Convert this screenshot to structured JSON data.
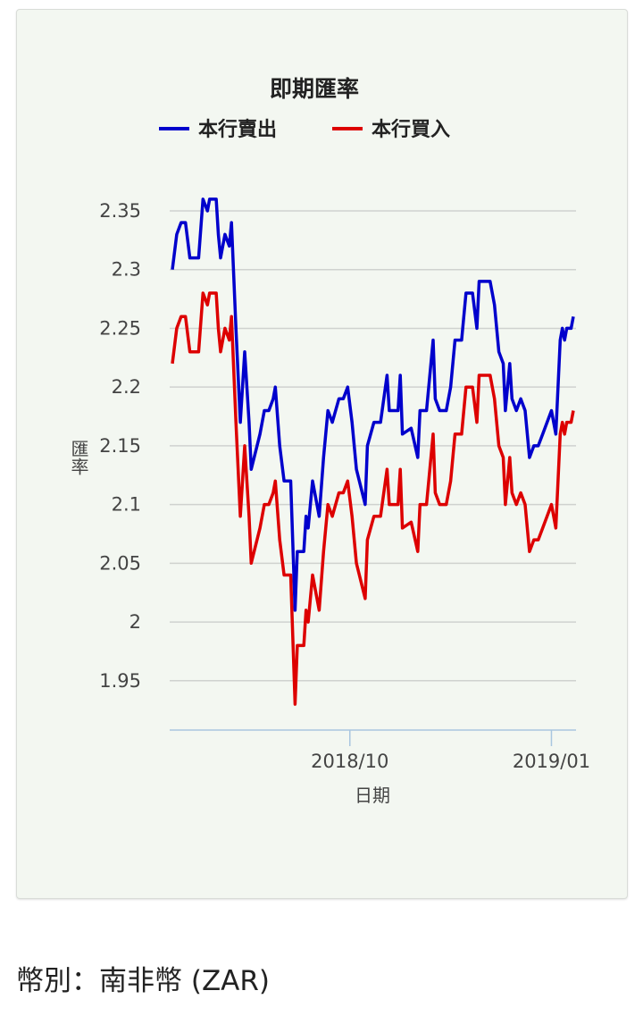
{
  "chart_data": {
    "type": "line",
    "title": "即期匯率",
    "xlabel": "日期",
    "ylabel": "匯率",
    "legend_position": "top",
    "grid": true,
    "x_unit": "days since start of period (~2018/07/12)",
    "xlim": [
      0,
      183
    ],
    "ylim": [
      1.908,
      2.35
    ],
    "x_ticks": [
      {
        "value": 81,
        "label": "2018/10"
      },
      {
        "value": 173,
        "label": "2019/01"
      }
    ],
    "y_ticks": [
      {
        "value": 2.35,
        "label": "2.35"
      },
      {
        "value": 2.3,
        "label": "2.3"
      },
      {
        "value": 2.25,
        "label": "2.25"
      },
      {
        "value": 2.2,
        "label": "2.2"
      },
      {
        "value": 2.15,
        "label": "2.15"
      },
      {
        "value": 2.1,
        "label": "2.1"
      },
      {
        "value": 2.05,
        "label": "2.05"
      },
      {
        "value": 2.0,
        "label": "2"
      },
      {
        "value": 1.95,
        "label": "1.95"
      }
    ],
    "x": [
      0,
      2,
      4,
      6,
      8,
      12,
      14,
      16,
      17,
      20,
      21,
      22,
      24,
      26,
      27,
      29,
      31,
      33,
      35,
      36,
      40,
      42,
      44,
      46,
      47,
      49,
      51,
      54,
      56,
      57,
      60,
      61,
      62,
      64,
      67,
      69,
      71,
      73,
      76,
      78,
      80,
      82,
      84,
      88,
      89,
      92,
      95,
      98,
      99,
      103,
      104,
      105,
      109,
      112,
      113,
      116,
      119,
      120,
      122,
      125,
      127,
      129,
      132,
      134,
      137,
      139,
      140,
      145,
      147,
      149,
      151,
      152,
      154,
      155,
      157,
      159,
      161,
      163,
      165,
      167,
      169,
      173,
      175,
      177,
      178,
      179,
      180,
      182,
      183
    ],
    "series": [
      {
        "name": "本行賣出",
        "color": "#0000cc",
        "values": [
          2.3,
          2.33,
          2.34,
          2.34,
          2.31,
          2.31,
          2.36,
          2.35,
          2.36,
          2.36,
          2.33,
          2.31,
          2.33,
          2.32,
          2.34,
          2.25,
          2.17,
          2.23,
          2.17,
          2.13,
          2.16,
          2.18,
          2.18,
          2.19,
          2.2,
          2.15,
          2.12,
          2.12,
          2.01,
          2.06,
          2.06,
          2.09,
          2.08,
          2.12,
          2.09,
          2.14,
          2.18,
          2.17,
          2.19,
          2.19,
          2.2,
          2.17,
          2.13,
          2.1,
          2.15,
          2.17,
          2.17,
          2.21,
          2.18,
          2.18,
          2.21,
          2.16,
          2.165,
          2.14,
          2.18,
          2.18,
          2.24,
          2.19,
          2.18,
          2.18,
          2.2,
          2.24,
          2.24,
          2.28,
          2.28,
          2.25,
          2.29,
          2.29,
          2.27,
          2.23,
          2.22,
          2.18,
          2.22,
          2.19,
          2.18,
          2.19,
          2.18,
          2.14,
          2.15,
          2.15,
          2.16,
          2.18,
          2.16,
          2.24,
          2.25,
          2.24,
          2.25,
          2.25,
          2.26
        ]
      },
      {
        "name": "本行買入",
        "color": "#dd0000",
        "values": [
          2.22,
          2.25,
          2.26,
          2.26,
          2.23,
          2.23,
          2.28,
          2.27,
          2.28,
          2.28,
          2.25,
          2.23,
          2.25,
          2.24,
          2.26,
          2.17,
          2.09,
          2.15,
          2.09,
          2.05,
          2.08,
          2.1,
          2.1,
          2.11,
          2.12,
          2.07,
          2.04,
          2.04,
          1.93,
          1.98,
          1.98,
          2.01,
          2.0,
          2.04,
          2.01,
          2.06,
          2.1,
          2.09,
          2.11,
          2.11,
          2.12,
          2.09,
          2.05,
          2.02,
          2.07,
          2.09,
          2.09,
          2.13,
          2.1,
          2.1,
          2.13,
          2.08,
          2.085,
          2.06,
          2.1,
          2.1,
          2.16,
          2.11,
          2.1,
          2.1,
          2.12,
          2.16,
          2.16,
          2.2,
          2.2,
          2.17,
          2.21,
          2.21,
          2.19,
          2.15,
          2.14,
          2.1,
          2.14,
          2.11,
          2.1,
          2.11,
          2.1,
          2.06,
          2.07,
          2.07,
          2.08,
          2.1,
          2.08,
          2.16,
          2.17,
          2.16,
          2.17,
          2.17,
          2.18
        ]
      }
    ]
  },
  "footer": {
    "currency": "幣別：南非幣 (ZAR)"
  }
}
